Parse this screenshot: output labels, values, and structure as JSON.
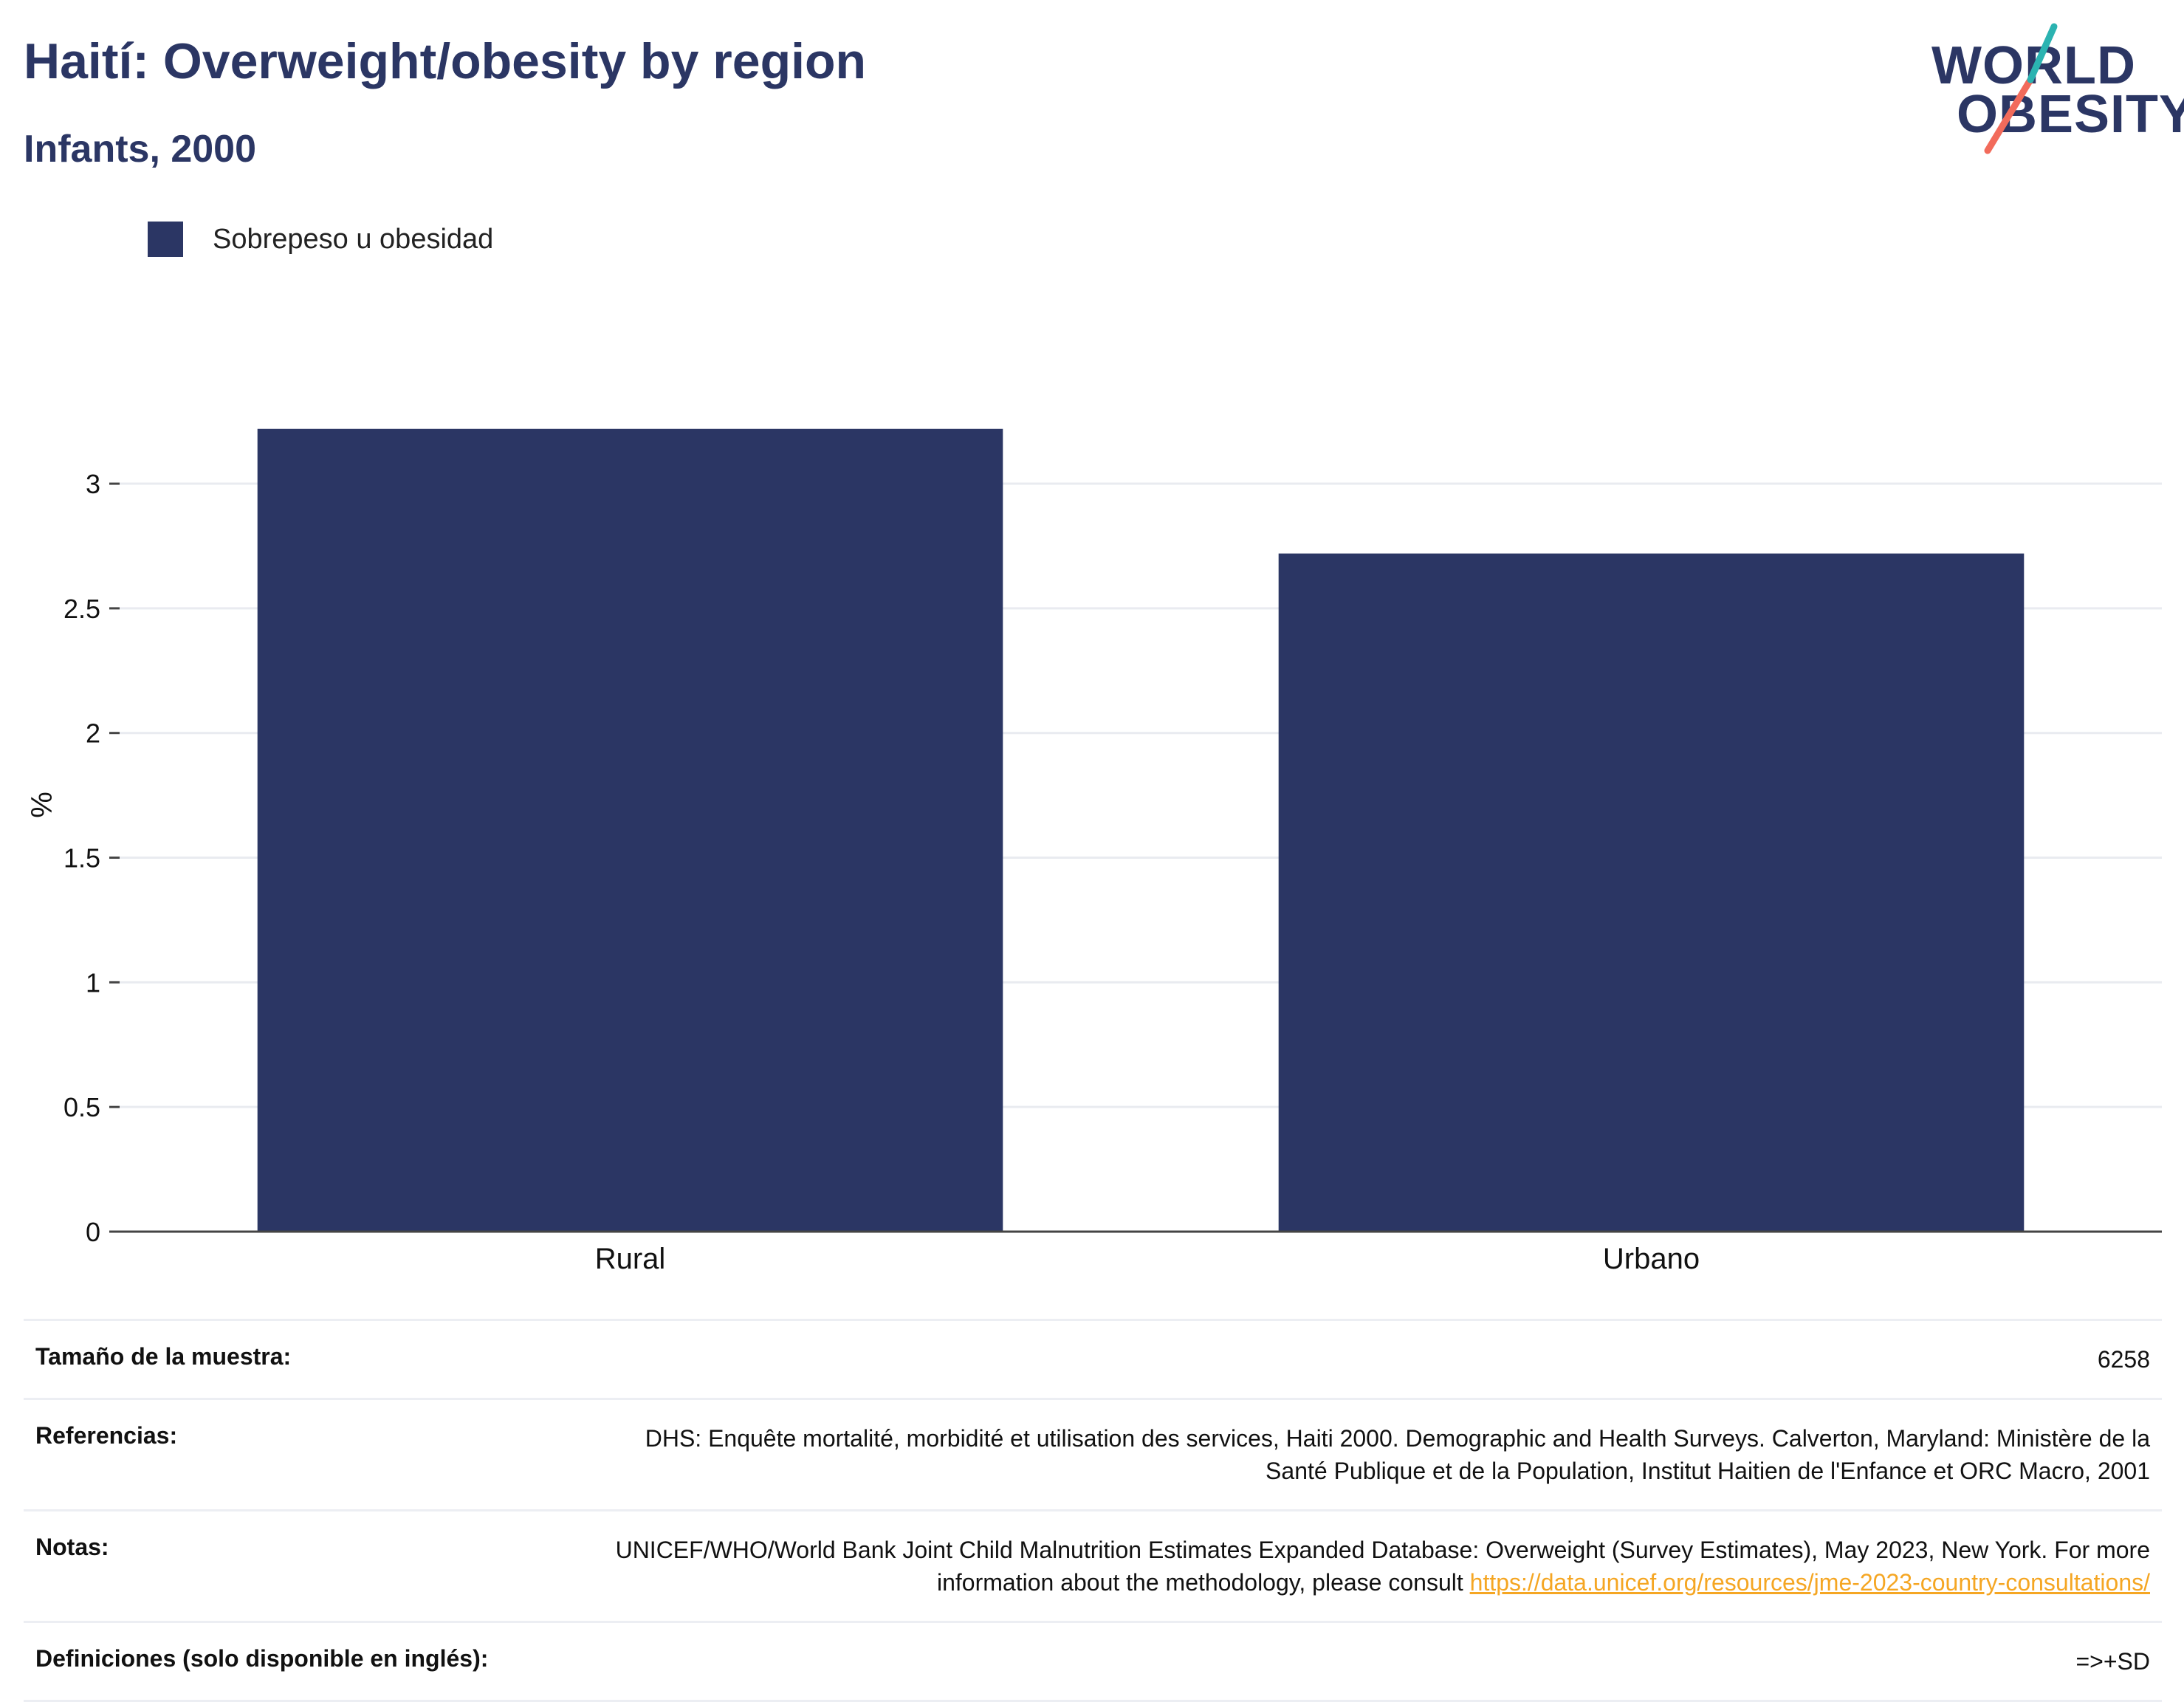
{
  "header": {
    "title": "Haití: Overweight/obesity by region",
    "subtitle": "Infants, 2000"
  },
  "logo": {
    "line1": "WORLD",
    "line2": "OBESITY",
    "colors": {
      "navy": "#2b3664",
      "teal": "#2bb3b1",
      "coral": "#f26b5b"
    }
  },
  "legend": {
    "items": [
      {
        "label": "Sobrepeso u obesidad",
        "color": "#2b3664"
      }
    ]
  },
  "chart_data": {
    "type": "bar",
    "categories": [
      "Rural",
      "Urbano"
    ],
    "series": [
      {
        "name": "Sobrepeso u obesidad",
        "values": [
          3.22,
          2.72
        ],
        "color": "#2b3664"
      }
    ],
    "title": "Haití: Overweight/obesity by region",
    "subtitle": "Infants, 2000",
    "xlabel": "",
    "ylabel": "%",
    "ylim": [
      0,
      3.4
    ],
    "yticks": [
      0,
      0.5,
      1,
      1.5,
      2,
      2.5,
      3
    ],
    "ytick_labels": [
      "0",
      "0.5",
      "1",
      "1.5",
      "2",
      "2.5",
      "3"
    ],
    "grid": true
  },
  "info": {
    "rows": [
      {
        "key": "Tamaño de la muestra:",
        "value": "6258"
      },
      {
        "key": "Referencias:",
        "value": "DHS: Enquête mortalité, morbidité et utilisation des services, Haiti 2000. Demographic and Health Surveys. Calverton, Maryland: Ministère de la Santé Publique et de la Population, Institut Haitien de l'Enfance et ORC Macro, 2001"
      },
      {
        "key": "Notas:",
        "value": "UNICEF/WHO/World Bank Joint Child Malnutrition Estimates Expanded Database: Overweight (Survey Estimates), May 2023, New York. For more information about the methodology, please consult ",
        "link": "https://data.unicef.org/resources/jme-2023-country-consultations/"
      },
      {
        "key": "Definiciones (solo disponible en inglés):",
        "value": "=>+SD"
      }
    ]
  }
}
